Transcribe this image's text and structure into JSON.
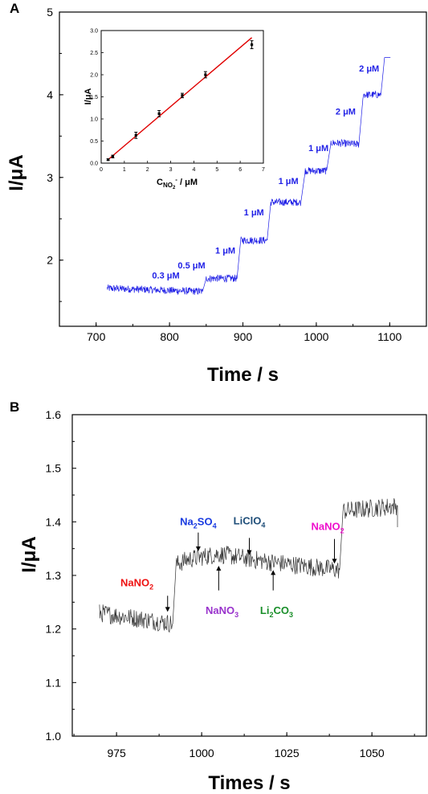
{
  "chart_data": [
    {
      "panel": "A",
      "type": "line",
      "xlabel": "Time / s",
      "ylabel": "I/μA",
      "xlim": [
        650,
        1150
      ],
      "ylim": [
        1.2,
        5
      ],
      "xticks": [
        "700",
        "800",
        "900",
        "1000",
        "1100"
      ],
      "yticks": [
        "2",
        "3",
        "4",
        "5"
      ],
      "line_color": "#1f1fe6",
      "steps": [
        {
          "t": 715,
          "i": 1.66
        },
        {
          "t": 845,
          "i": 1.62
        },
        {
          "t": 850,
          "i": 1.78
        },
        {
          "t": 892,
          "i": 1.78
        },
        {
          "t": 897,
          "i": 2.24
        },
        {
          "t": 933,
          "i": 2.24
        },
        {
          "t": 938,
          "i": 2.7
        },
        {
          "t": 979,
          "i": 2.7
        },
        {
          "t": 985,
          "i": 3.08
        },
        {
          "t": 1014,
          "i": 3.08
        },
        {
          "t": 1020,
          "i": 3.42
        },
        {
          "t": 1058,
          "i": 3.4
        },
        {
          "t": 1064,
          "i": 4.0
        },
        {
          "t": 1088,
          "i": 4.0
        },
        {
          "t": 1093,
          "i": 4.45
        },
        {
          "t": 1101,
          "i": 4.45
        }
      ],
      "annotations": [
        {
          "text": "0.3 μM",
          "t": 795,
          "i": 1.78
        },
        {
          "text": "0.5 μM",
          "t": 830,
          "i": 1.9
        },
        {
          "text": "1 μM",
          "t": 876,
          "i": 2.08
        },
        {
          "text": "1 μM",
          "t": 915,
          "i": 2.54
        },
        {
          "text": "1 μM",
          "t": 962,
          "i": 2.92
        },
        {
          "text": "1 μM",
          "t": 1003,
          "i": 3.32
        },
        {
          "text": "2 μM",
          "t": 1040,
          "i": 3.76
        },
        {
          "text": "2 μM",
          "t": 1072,
          "i": 4.28
        }
      ],
      "inset": {
        "type": "scatter",
        "xlabel_main": "C",
        "xlabel_sub": "NO",
        "xlabel_subsub": "2",
        "xlabel_sup": "-",
        "xlabel_tail": " / μM",
        "ylabel": "I/μA",
        "xlim": [
          0,
          7
        ],
        "ylim": [
          0,
          3.0
        ],
        "xticks": [
          "0",
          "1",
          "2",
          "3",
          "4",
          "5",
          "6",
          "7"
        ],
        "yticks": [
          "0.0",
          "0.5",
          "1.0",
          "1.5",
          "2.0",
          "2.5",
          "3.0"
        ],
        "x": [
          0.3,
          0.5,
          1.5,
          2.5,
          3.5,
          4.5,
          6.5
        ],
        "y": [
          0.08,
          0.15,
          0.63,
          1.12,
          1.53,
          2.0,
          2.68
        ],
        "yerr": [
          0.02,
          0.03,
          0.07,
          0.07,
          0.05,
          0.07,
          0.09
        ],
        "fit": {
          "x": [
            0.3,
            6.5
          ],
          "y": [
            0.08,
            2.84
          ]
        },
        "fit_color": "#e00000"
      }
    },
    {
      "panel": "B",
      "type": "line",
      "xlabel": "Times / s",
      "ylabel": "I/μA",
      "xlim": [
        962,
        1066
      ],
      "ylim": [
        1.0,
        1.6
      ],
      "xticks": [
        "975",
        "1000",
        "1025",
        "1050"
      ],
      "yticks": [
        "1.0",
        "1.1",
        "1.2",
        "1.3",
        "1.4",
        "1.5",
        "1.6"
      ],
      "line_color": "#333333",
      "steps": [
        {
          "t": 970,
          "i": 1.23
        },
        {
          "t": 991.5,
          "i": 1.21
        },
        {
          "t": 992.5,
          "i": 1.32
        },
        {
          "t": 996,
          "i": 1.33
        },
        {
          "t": 1005,
          "i": 1.34
        },
        {
          "t": 1020,
          "i": 1.325
        },
        {
          "t": 1040.5,
          "i": 1.31
        },
        {
          "t": 1041.5,
          "i": 1.42
        },
        {
          "t": 1057.5,
          "i": 1.43
        }
      ],
      "annotations": [
        {
          "label": "NaNO",
          "sub": "2",
          "sub2": "",
          "color": "#ee1111",
          "t": 981,
          "i": 1.28,
          "arrow_t": 990,
          "arrow_from": 1.262,
          "arrow_to": 1.232
        },
        {
          "label": "Na",
          "sub": "2",
          "sub2": "SO",
          "sub3": "4",
          "color": "#1a3be0",
          "t": 999,
          "i": 1.394,
          "arrow_t": 999,
          "arrow_from": 1.38,
          "arrow_to": 1.345
        },
        {
          "label": "LiClO",
          "sub": "4",
          "sub2": "",
          "color": "#1f4e79",
          "t": 1014,
          "i": 1.395,
          "arrow_t": 1014,
          "arrow_from": 1.37,
          "arrow_to": 1.338
        },
        {
          "label": "NaNO",
          "sub": "2",
          "sub2": "",
          "color": "#ee11cc",
          "t": 1037,
          "i": 1.385,
          "arrow_t": 1039,
          "arrow_from": 1.368,
          "arrow_to": 1.322
        },
        {
          "label": "NaNO",
          "sub": "3",
          "sub2": "",
          "color": "#9933cc",
          "t": 1006,
          "i": 1.228,
          "arrow_t": 1005,
          "arrow_from": 1.272,
          "arrow_to": 1.318
        },
        {
          "label": "Li",
          "sub": "2",
          "sub2": "CO",
          "sub3": "3",
          "color": "#1a8f2a",
          "t": 1022,
          "i": 1.228,
          "arrow_t": 1021,
          "arrow_from": 1.272,
          "arrow_to": 1.31
        }
      ]
    }
  ]
}
